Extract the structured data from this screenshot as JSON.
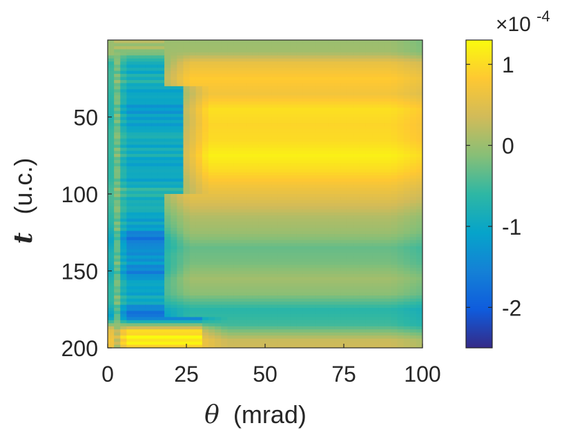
{
  "chart_data": {
    "type": "heatmap",
    "title": "",
    "xlabel_symbol": "θ",
    "xlabel_unit": "(mrad)",
    "ylabel_symbol": "t",
    "ylabel_unit": "(u.c.)",
    "xlim": [
      0,
      100
    ],
    "ylim": [
      0,
      200
    ],
    "y_direction": "reverse",
    "x_ticks": [
      0,
      25,
      50,
      75,
      100
    ],
    "x_tick_labels": [
      "0",
      "25",
      "50",
      "75",
      "100"
    ],
    "y_ticks": [
      50,
      100,
      150,
      200
    ],
    "y_tick_labels": [
      "50",
      "100",
      "150",
      "200"
    ],
    "colorbar": {
      "colormap": "parula",
      "range": [
        -0.00025,
        0.00013
      ],
      "ticks": [
        1,
        0,
        -1,
        -2
      ],
      "tick_labels": [
        "1",
        "0",
        "-1",
        "-2"
      ],
      "exponent_prefix": "×10",
      "exponent_power": "-4"
    },
    "description_data": {
      "x_step": 2,
      "y_step": 2,
      "baseline_rows": [
        {
          "t": 0,
          "value": 0.0
        },
        {
          "t": 8,
          "value": 0.05
        },
        {
          "t": 15,
          "value": 0.6
        },
        {
          "t": 25,
          "value": 0.85
        },
        {
          "t": 35,
          "value": 0.7
        },
        {
          "t": 45,
          "value": 1.05
        },
        {
          "t": 55,
          "value": 0.95
        },
        {
          "t": 65,
          "value": 1.0
        },
        {
          "t": 75,
          "value": 1.2
        },
        {
          "t": 85,
          "value": 1.0
        },
        {
          "t": 95,
          "value": 0.7
        },
        {
          "t": 105,
          "value": 0.45
        },
        {
          "t": 115,
          "value": 0.15
        },
        {
          "t": 125,
          "value": 0.0
        },
        {
          "t": 135,
          "value": -0.3
        },
        {
          "t": 145,
          "value": -0.2
        },
        {
          "t": 155,
          "value": 0.05
        },
        {
          "t": 165,
          "value": -0.1
        },
        {
          "t": 175,
          "value": -0.65
        },
        {
          "t": 185,
          "value": -0.5
        },
        {
          "t": 195,
          "value": 0.3
        },
        {
          "t": 200,
          "value": 0.35
        }
      ],
      "low_theta_rows": [
        {
          "t": 0,
          "value": 0.0
        },
        {
          "t": 8,
          "value": 0.0
        },
        {
          "t": 15,
          "value": -1.0
        },
        {
          "t": 22,
          "value": -0.8
        },
        {
          "t": 30,
          "value": -0.9
        },
        {
          "t": 40,
          "value": -1.1
        },
        {
          "t": 50,
          "value": -1.2
        },
        {
          "t": 60,
          "value": -0.9
        },
        {
          "t": 70,
          "value": -0.9
        },
        {
          "t": 80,
          "value": -1.0
        },
        {
          "t": 90,
          "value": -1.0
        },
        {
          "t": 100,
          "value": -0.7
        },
        {
          "t": 110,
          "value": -0.9
        },
        {
          "t": 120,
          "value": -1.1
        },
        {
          "t": 130,
          "value": -1.7
        },
        {
          "t": 140,
          "value": -1.2
        },
        {
          "t": 150,
          "value": -1.5
        },
        {
          "t": 160,
          "value": -1.0
        },
        {
          "t": 170,
          "value": -1.0
        },
        {
          "t": 180,
          "value": -1.9
        },
        {
          "t": 188,
          "value": 0.9
        },
        {
          "t": 195,
          "value": 1.2
        },
        {
          "t": 200,
          "value": 1.1
        }
      ]
    }
  }
}
